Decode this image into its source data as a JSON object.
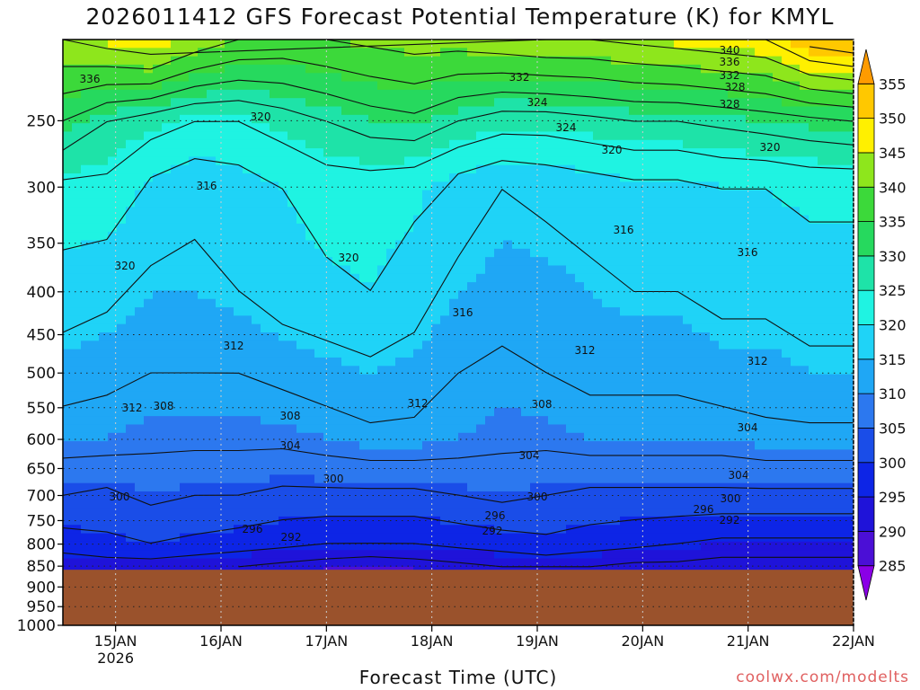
{
  "chart_data": {
    "type": "heatmap",
    "title": "2026011412 GFS Forecast Potential Temperature (K) for KMYL",
    "xlabel": "Forecast Time (UTC)",
    "ylabel": "",
    "credit": "coolwx.com/modelts",
    "y_axis": {
      "unit": "hPa",
      "scale": "log",
      "inverted": true,
      "range": [
        1000,
        200
      ],
      "tick_labels": [
        "250",
        "300",
        "350",
        "400",
        "450",
        "500",
        "550",
        "600",
        "650",
        "700",
        "750",
        "800",
        "850",
        "900",
        "950",
        "1000"
      ]
    },
    "x_axis": {
      "range": [
        "2026-01-14 12UTC",
        "2026-01-22 00UTC"
      ],
      "tick_labels": [
        "15JAN",
        "16JAN",
        "17JAN",
        "18JAN",
        "19JAN",
        "20JAN",
        "21JAN",
        "22JAN"
      ],
      "first_tick_sublabel": "2026"
    },
    "grid": true,
    "colorbar": {
      "position": "right",
      "values": [
        285,
        290,
        295,
        300,
        305,
        310,
        315,
        320,
        325,
        330,
        335,
        340,
        345,
        350,
        355
      ],
      "colors": [
        "#8a00e6",
        "#4b0fd6",
        "#1f13d9",
        "#0d25e6",
        "#1a4de8",
        "#2c78ef",
        "#1fa7f5",
        "#1fd3f7",
        "#1ff3e2",
        "#1ee3a8",
        "#26d95e",
        "#3cd93a",
        "#8ee61c",
        "#fff000",
        "#ffc800",
        "#ff9b00"
      ]
    },
    "ground": {
      "color": "#9a522c",
      "surface_pressure": 850
    },
    "contour_interval": 4,
    "contour_labels": [
      "336",
      "340",
      "336",
      "332",
      "332",
      "328",
      "324",
      "328",
      "324",
      "320",
      "320",
      "320",
      "316",
      "316",
      "316",
      "316",
      "320",
      "320",
      "312",
      "312",
      "312",
      "312",
      "312",
      "308",
      "308",
      "308",
      "304",
      "304",
      "304",
      "304",
      "300",
      "300",
      "300",
      "300",
      "296",
      "296",
      "296",
      "292",
      "292",
      "292"
    ],
    "series": [
      {
        "pressure": 200,
        "theta": [
          344,
          346,
          348,
          343,
          340,
          339,
          340,
          341,
          342,
          342,
          343,
          344,
          344,
          345,
          346,
          347,
          348,
          354,
          356
        ]
      },
      {
        "pressure": 250,
        "theta": [
          332,
          328,
          326,
          324,
          324,
          326,
          328,
          330,
          331,
          328,
          326,
          326,
          327,
          328,
          328,
          329,
          330,
          331,
          332
        ]
      },
      {
        "pressure": 300,
        "theta": [
          323,
          323,
          319,
          317,
          318,
          320,
          322,
          322,
          321,
          318,
          316,
          317,
          318,
          319,
          319,
          320,
          320,
          321,
          321
        ]
      },
      {
        "pressure": 400,
        "theta": [
          318,
          317,
          315,
          315,
          316,
          318,
          319,
          320,
          318,
          315,
          314,
          314,
          315,
          316,
          316,
          317,
          317,
          318,
          318
        ]
      },
      {
        "pressure": 500,
        "theta": [
          314,
          313,
          312,
          312,
          312,
          313,
          314,
          315,
          314,
          312,
          311,
          312,
          313,
          313,
          313,
          314,
          314,
          315,
          315
        ]
      },
      {
        "pressure": 600,
        "theta": [
          310,
          310,
          309,
          309,
          309,
          309,
          310,
          311,
          311,
          310,
          309,
          309,
          310,
          310,
          310,
          310,
          311,
          311,
          311
        ]
      },
      {
        "pressure": 700,
        "theta": [
          304,
          303,
          305,
          304,
          304,
          303,
          303,
          303,
          303,
          304,
          305,
          304,
          303,
          303,
          303,
          303,
          303,
          303,
          303
        ]
      },
      {
        "pressure": 800,
        "theta": [
          298,
          299,
          300,
          299,
          298,
          297,
          296,
          296,
          296,
          297,
          298,
          299,
          298,
          297,
          296,
          295,
          295,
          295,
          295
        ]
      },
      {
        "pressure": 850,
        "theta": [
          293,
          294,
          294,
          293,
          292,
          291,
          290,
          289,
          290,
          291,
          292,
          293,
          292,
          291,
          291,
          290,
          290,
          290,
          290
        ]
      }
    ]
  }
}
